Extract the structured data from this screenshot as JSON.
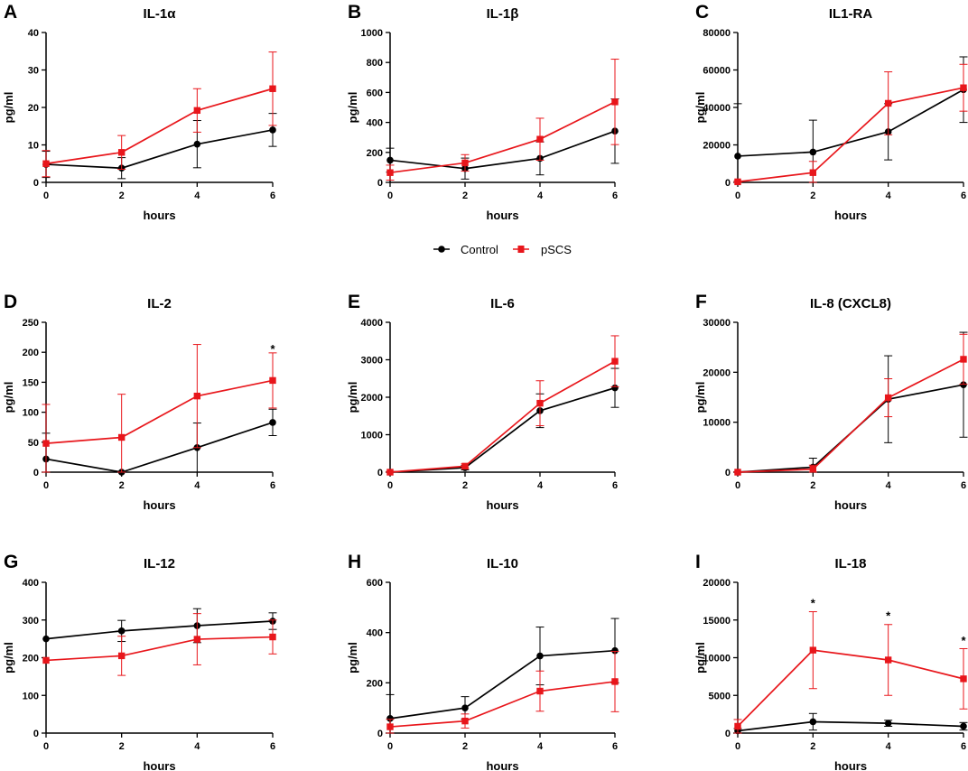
{
  "colors": {
    "Control": "#000000",
    "pSCS": "#e8161b"
  },
  "legend": [
    {
      "name": "Control",
      "color": "#000000",
      "marker": "circle"
    },
    {
      "name": "pSCS",
      "color": "#e8161b",
      "marker": "square"
    }
  ],
  "chart_data": [
    {
      "panel": "A",
      "title": "IL-1α",
      "type": "line",
      "xlabel": "hours",
      "ylabel": "pg/ml",
      "x": [
        0,
        2,
        4,
        6
      ],
      "xticks": [
        0,
        2,
        4,
        6
      ],
      "ylim": [
        0,
        40
      ],
      "yticks": [
        0,
        10,
        20,
        30,
        40
      ],
      "series": [
        {
          "name": "Control",
          "values": [
            4.8,
            3.8,
            10.2,
            14.0
          ],
          "error": [
            3.5,
            2.8,
            6.3,
            4.4
          ]
        },
        {
          "name": "pSCS",
          "values": [
            5.0,
            8.0,
            19.2,
            25.0
          ],
          "error": [
            3.5,
            4.5,
            5.8,
            9.8
          ]
        }
      ],
      "annotations": []
    },
    {
      "panel": "B",
      "title": "IL-1β",
      "type": "line",
      "xlabel": "hours",
      "ylabel": "pg/ml",
      "x": [
        0,
        2,
        4,
        6
      ],
      "xticks": [
        0,
        2,
        4,
        6
      ],
      "ylim": [
        0,
        1000
      ],
      "yticks": [
        0,
        200,
        400,
        600,
        800,
        1000
      ],
      "series": [
        {
          "name": "Control",
          "values": [
            148,
            92,
            160,
            342
          ],
          "error": [
            80,
            70,
            110,
            215
          ]
        },
        {
          "name": "pSCS",
          "values": [
            65,
            130,
            288,
            537
          ],
          "error": [
            50,
            55,
            140,
            285
          ]
        }
      ],
      "annotations": []
    },
    {
      "panel": "C",
      "title": "IL1-RA",
      "type": "line",
      "xlabel": "hours",
      "ylabel": "pg/ml",
      "x": [
        0,
        2,
        4,
        6
      ],
      "xticks": [
        0,
        2,
        4,
        6
      ],
      "ylim": [
        0,
        80000
      ],
      "yticks": [
        0,
        20000,
        40000,
        60000,
        80000
      ],
      "series": [
        {
          "name": "Control",
          "values": [
            14000,
            16200,
            27000,
            49500
          ],
          "error": [
            28000,
            17000,
            15000,
            17500
          ]
        },
        {
          "name": "pSCS",
          "values": [
            300,
            5200,
            42200,
            50500
          ],
          "error": [
            500,
            6000,
            16800,
            12500
          ]
        }
      ],
      "annotations": []
    },
    {
      "panel": "D",
      "title": "IL-2",
      "type": "line",
      "xlabel": "hours",
      "ylabel": "pg/ml",
      "x": [
        0,
        2,
        4,
        6
      ],
      "xticks": [
        0,
        2,
        4,
        6
      ],
      "ylim": [
        0,
        250
      ],
      "yticks": [
        0,
        50,
        100,
        150,
        200,
        250
      ],
      "series": [
        {
          "name": "Control",
          "values": [
            22,
            0,
            41,
            83
          ],
          "error": [
            43,
            0,
            41,
            22
          ]
        },
        {
          "name": "pSCS",
          "values": [
            48,
            58,
            127,
            153
          ],
          "error": [
            65,
            72,
            86,
            46
          ]
        }
      ],
      "annotations": [
        {
          "x": 6,
          "y": 205,
          "text": "*"
        }
      ]
    },
    {
      "panel": "E",
      "title": "IL-6",
      "type": "line",
      "xlabel": "hours",
      "ylabel": "pg/ml",
      "x": [
        0,
        2,
        4,
        6
      ],
      "xticks": [
        0,
        2,
        4,
        6
      ],
      "ylim": [
        0,
        4000
      ],
      "yticks": [
        0,
        1000,
        2000,
        3000,
        4000
      ],
      "series": [
        {
          "name": "Control",
          "values": [
            0,
            120,
            1640,
            2250
          ],
          "error": [
            20,
            60,
            450,
            520
          ]
        },
        {
          "name": "pSCS",
          "values": [
            0,
            160,
            1840,
            2960
          ],
          "error": [
            20,
            60,
            600,
            680
          ]
        }
      ],
      "annotations": []
    },
    {
      "panel": "F",
      "title": "IL-8 (CXCL8)",
      "type": "line",
      "xlabel": "hours",
      "ylabel": "pg/ml",
      "x": [
        0,
        2,
        4,
        6
      ],
      "xticks": [
        0,
        2,
        4,
        6
      ],
      "ylim": [
        0,
        30000
      ],
      "yticks": [
        0,
        10000,
        20000,
        30000
      ],
      "series": [
        {
          "name": "Control",
          "values": [
            0,
            1000,
            14600,
            17500
          ],
          "error": [
            100,
            1800,
            8700,
            10500
          ]
        },
        {
          "name": "pSCS",
          "values": [
            0,
            600,
            14900,
            22600
          ],
          "error": [
            100,
            800,
            3800,
            5000
          ]
        }
      ],
      "annotations": []
    },
    {
      "panel": "G",
      "title": "IL-12",
      "type": "line",
      "xlabel": "hours",
      "ylabel": "pg/ml",
      "x": [
        0,
        2,
        4,
        6
      ],
      "xticks": [
        0,
        2,
        4,
        6
      ],
      "ylim": [
        0,
        400
      ],
      "yticks": [
        0,
        100,
        200,
        300,
        400
      ],
      "series": [
        {
          "name": "Control",
          "values": [
            250,
            271,
            285,
            297
          ],
          "error": [
            0,
            28,
            45,
            22
          ]
        },
        {
          "name": "pSCS",
          "values": [
            193,
            205,
            249,
            255
          ],
          "error": [
            0,
            52,
            68,
            45
          ]
        }
      ],
      "annotations": []
    },
    {
      "panel": "H",
      "title": "IL-10",
      "type": "line",
      "xlabel": "hours",
      "ylabel": "pg/ml",
      "x": [
        0,
        2,
        4,
        6
      ],
      "xticks": [
        0,
        2,
        4,
        6
      ],
      "ylim": [
        0,
        600
      ],
      "yticks": [
        0,
        200,
        400,
        600
      ],
      "series": [
        {
          "name": "Control",
          "values": [
            58,
            100,
            307,
            328
          ],
          "error": [
            95,
            45,
            115,
            128
          ]
        },
        {
          "name": "pSCS",
          "values": [
            25,
            48,
            167,
            205
          ],
          "error": [
            30,
            28,
            80,
            120
          ]
        }
      ],
      "annotations": []
    },
    {
      "panel": "I",
      "title": "IL-18",
      "type": "line",
      "xlabel": "hours",
      "ylabel": "pg/ml",
      "x": [
        0,
        2,
        4,
        6
      ],
      "xticks": [
        0,
        2,
        4,
        6
      ],
      "ylim": [
        0,
        20000
      ],
      "yticks": [
        0,
        5000,
        10000,
        15000,
        20000
      ],
      "series": [
        {
          "name": "Control",
          "values": [
            300,
            1500,
            1300,
            900
          ],
          "error": [
            300,
            1100,
            400,
            500
          ]
        },
        {
          "name": "pSCS",
          "values": [
            900,
            11000,
            9700,
            7200
          ],
          "error": [
            900,
            5100,
            4700,
            4000
          ]
        }
      ],
      "annotations": [
        {
          "x": 2,
          "y": 17200,
          "text": "*"
        },
        {
          "x": 4,
          "y": 15500,
          "text": "*"
        },
        {
          "x": 6,
          "y": 12200,
          "text": "*"
        }
      ]
    }
  ]
}
